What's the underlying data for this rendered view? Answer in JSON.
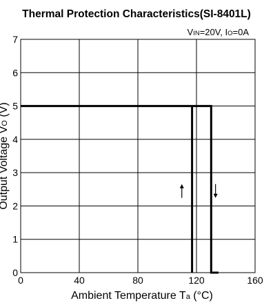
{
  "chart_data": {
    "type": "line",
    "title": "Thermal Protection Characteristics(SI-8401L)",
    "condition": {
      "vin_prefix": "V",
      "vin_sub": "IN",
      "vin_suffix": "=20V, ",
      "io_prefix": "I",
      "io_sub": "O",
      "io_suffix": "=0A"
    },
    "xlabel": {
      "main": "Ambient Temperature T",
      "sub": "a",
      "unit": " (°C)"
    },
    "ylabel": {
      "main": "Output Voltage V",
      "sub": "O",
      "unit": " (V)"
    },
    "xlim": [
      0,
      160
    ],
    "ylim": [
      0,
      7
    ],
    "x_ticks": [
      0,
      40,
      80,
      120,
      160
    ],
    "y_ticks": [
      0,
      1,
      2,
      3,
      4,
      5,
      6,
      7
    ],
    "grid": true,
    "series": [
      {
        "x": [
          0,
          130,
          130,
          135
        ],
        "y": [
          5,
          5,
          0,
          0
        ]
      },
      {
        "x": [
          117,
          117
        ],
        "y": [
          0,
          5
        ]
      }
    ],
    "annotations": [
      {
        "x": 110,
        "y": 2.45,
        "direction": "up"
      },
      {
        "x": 133,
        "y": 2.45,
        "direction": "down"
      }
    ]
  }
}
